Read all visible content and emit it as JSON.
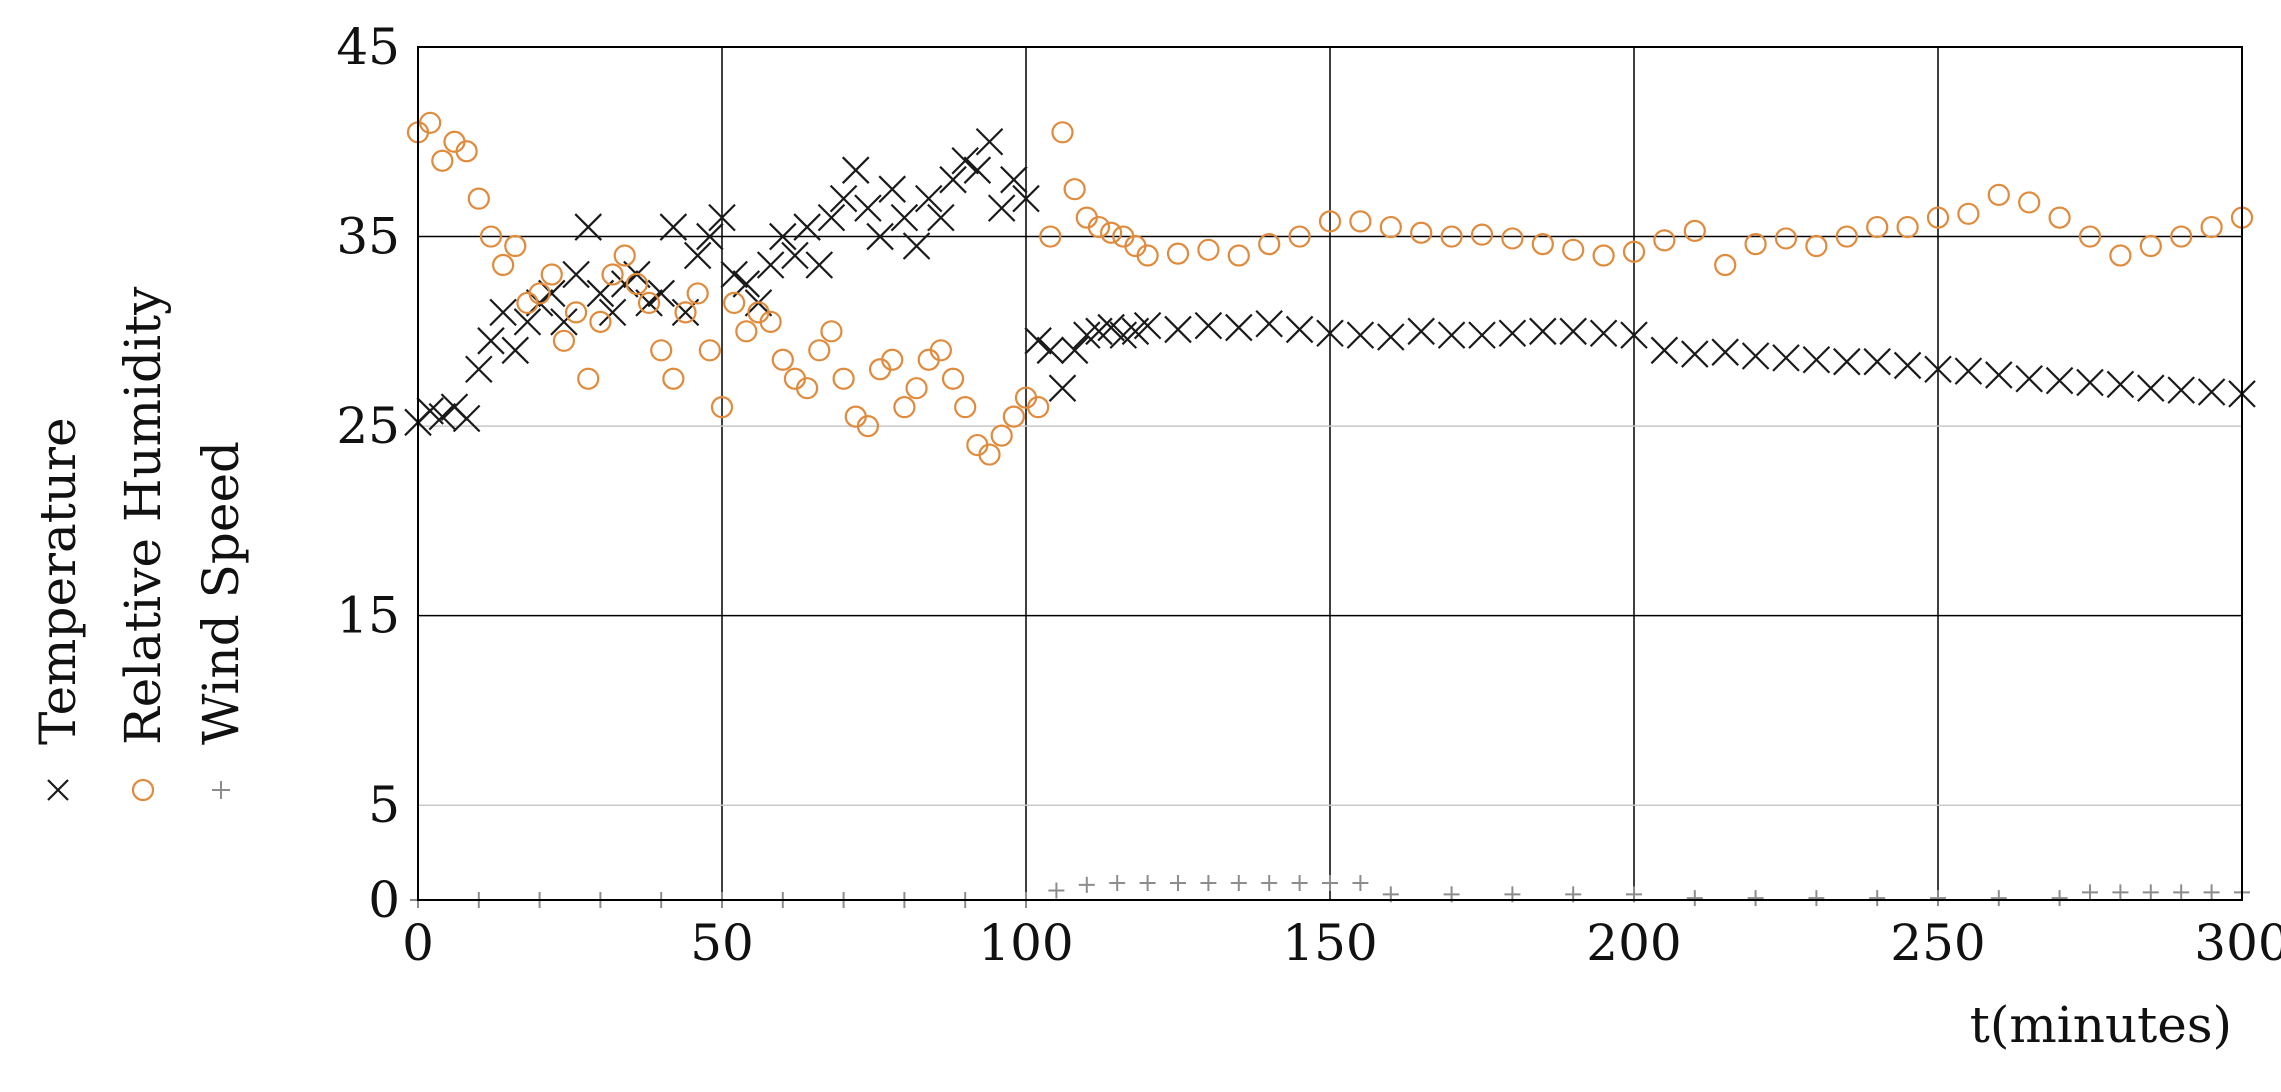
{
  "chart_data": {
    "type": "scatter",
    "title": "",
    "xlabel": "t(minutes)",
    "ylabel": "",
    "xlim": [
      0,
      300
    ],
    "ylim": [
      0,
      45
    ],
    "x_ticks": [
      0,
      50,
      100,
      150,
      200,
      250,
      300
    ],
    "y_ticks": [
      0,
      5,
      15,
      25,
      35,
      45
    ],
    "y_tick_labels": [
      "0",
      "5",
      "15",
      "25",
      "35",
      "45"
    ],
    "x_tick_labels": [
      "0",
      "50",
      "100",
      "150",
      "200",
      "250",
      "300"
    ],
    "grid": true,
    "legend_position": "left, rotated vertically",
    "series": [
      {
        "name": "Temperature",
        "marker": "x",
        "color": "#1a1a1a",
        "x": [
          0,
          2,
          4,
          6,
          8,
          10,
          12,
          14,
          16,
          18,
          20,
          22,
          24,
          26,
          28,
          30,
          32,
          34,
          36,
          38,
          40,
          42,
          44,
          46,
          48,
          50,
          52,
          54,
          56,
          58,
          60,
          62,
          64,
          66,
          68,
          70,
          72,
          74,
          76,
          78,
          80,
          82,
          84,
          86,
          88,
          90,
          92,
          94,
          96,
          98,
          100,
          102,
          104,
          106,
          108,
          110,
          112,
          114,
          116,
          118,
          120,
          125,
          130,
          135,
          140,
          145,
          150,
          155,
          160,
          165,
          170,
          175,
          180,
          185,
          190,
          195,
          200,
          205,
          210,
          215,
          220,
          225,
          230,
          235,
          240,
          245,
          250,
          255,
          260,
          265,
          270,
          275,
          280,
          285,
          290,
          295,
          300
        ],
        "y": [
          25.2,
          25.8,
          25.5,
          26.0,
          25.4,
          28.0,
          29.5,
          31.0,
          29.0,
          30.5,
          31.5,
          32.0,
          30.5,
          33.0,
          35.5,
          32.0,
          31.0,
          32.5,
          33.0,
          31.5,
          32.0,
          35.5,
          31.0,
          34.0,
          35.0,
          36.0,
          33.0,
          32.5,
          31.5,
          33.5,
          35.0,
          34.0,
          35.5,
          33.5,
          36.0,
          37.0,
          38.5,
          36.5,
          35.0,
          37.5,
          36.0,
          34.5,
          37.0,
          36.0,
          38.0,
          39.0,
          38.5,
          40.0,
          36.5,
          38.0,
          37.0,
          29.5,
          29.0,
          27.0,
          29.0,
          29.8,
          30.0,
          30.2,
          29.8,
          30.0,
          30.3,
          30.1,
          30.3,
          30.2,
          30.4,
          30.1,
          29.9,
          29.8,
          29.7,
          30.0,
          29.8,
          29.8,
          29.9,
          30.0,
          30.0,
          29.9,
          29.8,
          29.0,
          28.8,
          28.9,
          28.7,
          28.6,
          28.5,
          28.4,
          28.4,
          28.2,
          28.0,
          27.9,
          27.7,
          27.5,
          27.4,
          27.3,
          27.2,
          27.0,
          26.9,
          26.8,
          26.7
        ]
      },
      {
        "name": "Relative Humidity",
        "marker": "o",
        "color": "#e08a3c",
        "x": [
          0,
          2,
          4,
          6,
          8,
          10,
          12,
          14,
          16,
          18,
          20,
          22,
          24,
          26,
          28,
          30,
          32,
          34,
          36,
          38,
          40,
          42,
          44,
          46,
          48,
          50,
          52,
          54,
          56,
          58,
          60,
          62,
          64,
          66,
          68,
          70,
          72,
          74,
          76,
          78,
          80,
          82,
          84,
          86,
          88,
          90,
          92,
          94,
          96,
          98,
          100,
          102,
          104,
          106,
          108,
          110,
          112,
          114,
          116,
          118,
          120,
          125,
          130,
          135,
          140,
          145,
          150,
          155,
          160,
          165,
          170,
          175,
          180,
          185,
          190,
          195,
          200,
          205,
          210,
          215,
          220,
          225,
          230,
          235,
          240,
          245,
          250,
          255,
          260,
          265,
          270,
          275,
          280,
          285,
          290,
          295,
          300
        ],
        "y": [
          40.5,
          41.0,
          39.0,
          40.0,
          39.5,
          37.0,
          35.0,
          33.5,
          34.5,
          31.5,
          32.0,
          33.0,
          29.5,
          31.0,
          27.5,
          30.5,
          33.0,
          34.0,
          32.5,
          31.5,
          29.0,
          27.5,
          31.0,
          32.0,
          29.0,
          26.0,
          31.5,
          30.0,
          31.0,
          30.5,
          28.5,
          27.5,
          27.0,
          29.0,
          30.0,
          27.5,
          25.5,
          25.0,
          28.0,
          28.5,
          26.0,
          27.0,
          28.5,
          29.0,
          27.5,
          26.0,
          24.0,
          23.5,
          24.5,
          25.5,
          26.5,
          26.0,
          35.0,
          40.5,
          37.5,
          36.0,
          35.5,
          35.2,
          35.0,
          34.5,
          34.0,
          34.1,
          34.3,
          34.0,
          34.6,
          35.0,
          35.8,
          35.8,
          35.5,
          35.2,
          35.0,
          35.1,
          34.9,
          34.6,
          34.3,
          34.0,
          34.2,
          34.8,
          35.3,
          33.5,
          34.6,
          34.9,
          34.5,
          35.0,
          35.5,
          35.5,
          36.0,
          36.2,
          37.2,
          36.8,
          36.0,
          35.0,
          34.0,
          34.5,
          35.0,
          35.5,
          36.0
        ]
      },
      {
        "name": "Wind Speed",
        "marker": "+",
        "color": "#8c8c8c",
        "x": [
          0,
          10,
          20,
          30,
          40,
          50,
          60,
          70,
          80,
          90,
          100,
          105,
          110,
          115,
          120,
          125,
          130,
          135,
          140,
          145,
          150,
          155,
          160,
          170,
          180,
          190,
          200,
          210,
          220,
          230,
          240,
          250,
          260,
          270,
          275,
          280,
          285,
          290,
          295,
          300
        ],
        "y": [
          0,
          0,
          0,
          0,
          0,
          0,
          0,
          0,
          0,
          0,
          0,
          0.5,
          0.8,
          0.9,
          0.9,
          0.9,
          0.9,
          0.9,
          0.9,
          0.9,
          0.9,
          0.9,
          0.3,
          0.3,
          0.3,
          0.3,
          0.3,
          0.1,
          0.1,
          0.1,
          0.1,
          0.1,
          0.1,
          0.1,
          0.4,
          0.4,
          0.4,
          0.4,
          0.4,
          0.4
        ]
      }
    ]
  }
}
